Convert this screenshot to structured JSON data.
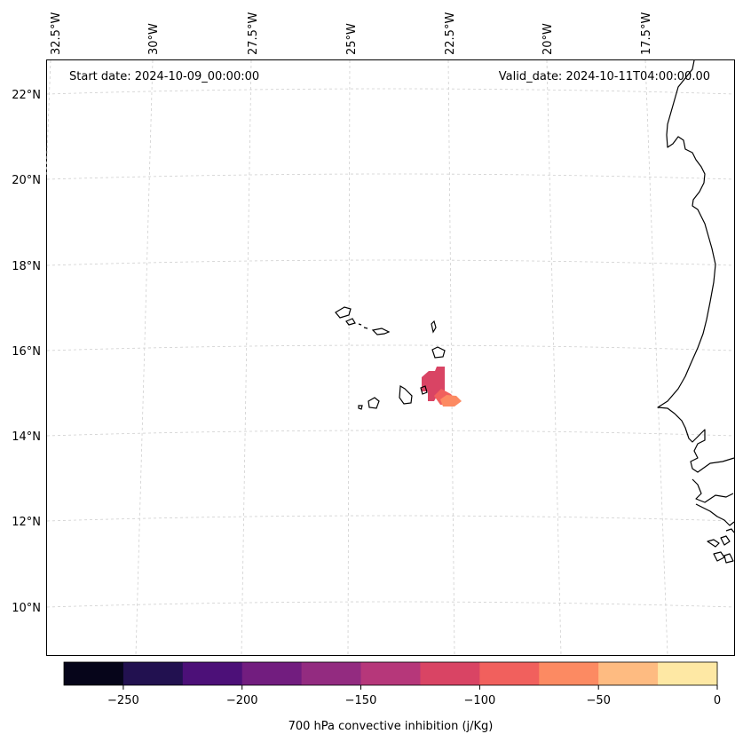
{
  "header": {
    "start_date": "Start date: 2024-10-09_00:00:00",
    "valid_date": "Valid_date: 2024-10-11T04:00:00.00"
  },
  "axes": {
    "lon_labels": [
      "32.5°W",
      "30°W",
      "27.5°W",
      "25°W",
      "22.5°W",
      "20°W",
      "17.5°W"
    ],
    "lat_labels": [
      "22°N",
      "20°N",
      "18°N",
      "16°N",
      "14°N",
      "12°N",
      "10°N"
    ]
  },
  "colorbar": {
    "label": "700 hPa convective inhibition (j/Kg)",
    "ticks": [
      "−250",
      "−200",
      "−150",
      "−100",
      "−50",
      "0"
    ],
    "colors": [
      "#06051a",
      "#221150",
      "#4c1078",
      "#721d7f",
      "#932b80",
      "#b6377a",
      "#d94464",
      "#f1605d",
      "#fc8a62",
      "#febb81",
      "#fee8a4"
    ]
  },
  "chart_data": {
    "type": "heatmap",
    "variable": "700 hPa convective inhibition",
    "units": "j/Kg",
    "levels": [
      -275,
      -250,
      -225,
      -200,
      -175,
      -150,
      -125,
      -100,
      -75,
      -50,
      -25,
      0
    ],
    "lon_range": [
      -33,
      -15
    ],
    "lat_range": [
      9,
      22.8
    ],
    "features": [
      {
        "name": "inhibition-patch-core",
        "value_range": [
          -125,
          -100
        ],
        "lon_range": [
          -23.2,
          -22.6
        ],
        "lat_range": [
          14.9,
          15.6
        ]
      },
      {
        "name": "inhibition-patch-tail",
        "value_range": [
          -100,
          -75
        ],
        "lon_range": [
          -22.5,
          -21.8
        ],
        "lat_range": [
          14.7,
          15.0
        ]
      },
      {
        "name": "inhibition-patch-edge",
        "value_range": [
          -75,
          -50
        ],
        "lon_range": [
          -22.3,
          -21.8
        ],
        "lat_range": [
          14.7,
          14.9
        ]
      }
    ]
  }
}
